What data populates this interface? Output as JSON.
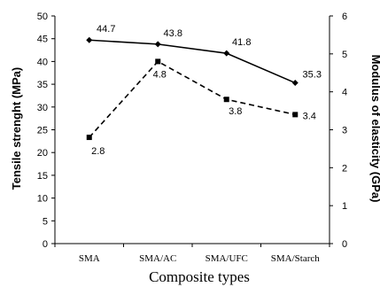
{
  "chart_data": {
    "type": "line",
    "categories": [
      "SMA",
      "SMA/AC",
      "SMA/UFC",
      "SMA/Starch"
    ],
    "xlabel": "Composite types",
    "ylabel_left": "Tensile strenght (MPa)",
    "ylabel_right": "Modulus of elasticity (GPa)",
    "ylim_left": [
      0,
      50
    ],
    "ylim_right": [
      0,
      6
    ],
    "yticks_left": [
      "0",
      "5",
      "10",
      "15",
      "20",
      "25",
      "30",
      "35",
      "40",
      "45",
      "50"
    ],
    "yticks_right": [
      "0",
      "1",
      "2",
      "3",
      "4",
      "5",
      "6"
    ],
    "grid": false,
    "series": [
      {
        "axis": "left",
        "style": "solid",
        "marker": "diamond",
        "values": [
          44.7,
          43.8,
          41.8,
          35.3
        ],
        "labels": [
          "44.7",
          "43.8",
          "41.8",
          "35.3"
        ]
      },
      {
        "axis": "right",
        "style": "dashed",
        "marker": "square",
        "values": [
          2.8,
          4.8,
          3.8,
          3.4
        ],
        "labels": [
          "2.8",
          "4.8",
          "3.8",
          "3.4"
        ]
      }
    ]
  }
}
